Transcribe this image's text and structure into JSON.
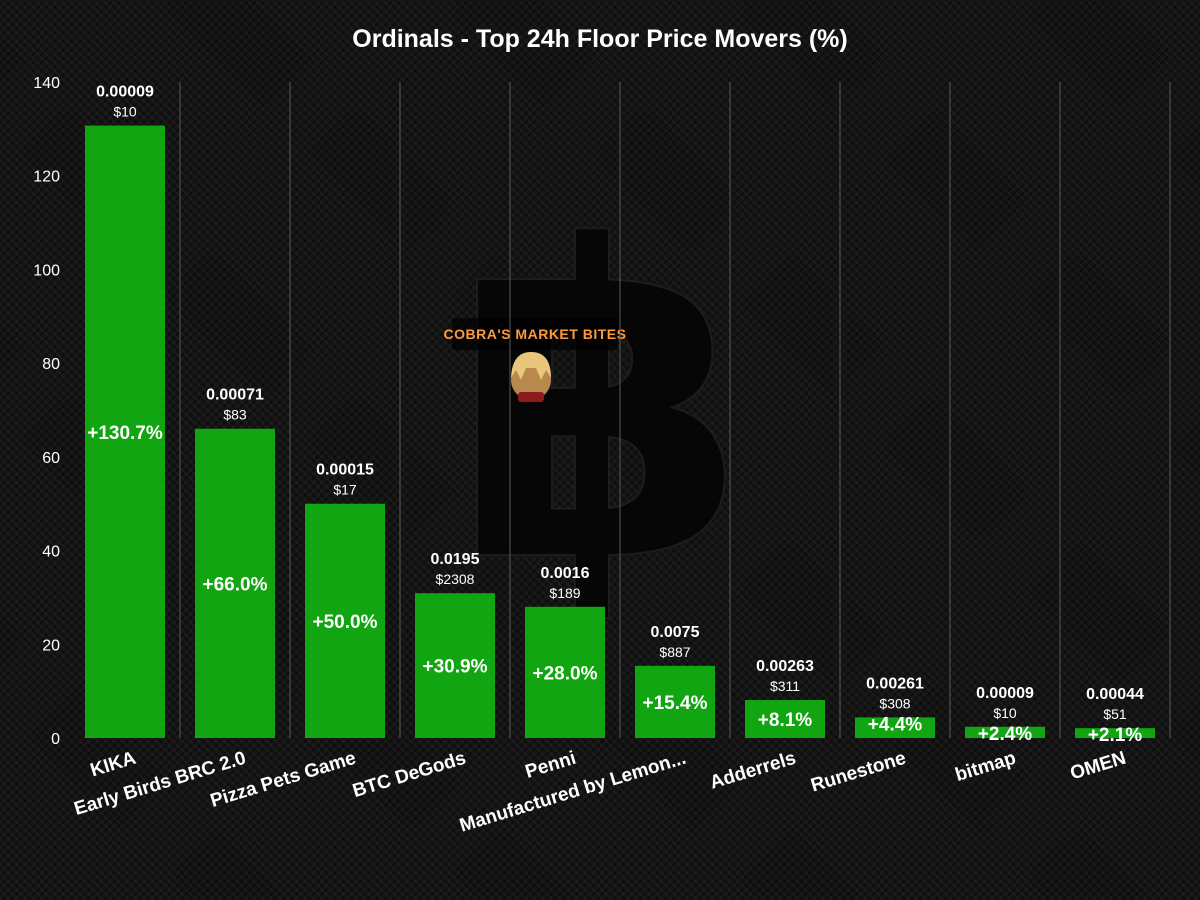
{
  "chart_data": {
    "type": "bar",
    "title": "Ordinals - Top 24h Floor Price Movers (%)",
    "xlabel": "",
    "ylabel": "",
    "ylim": [
      0,
      140
    ],
    "yticks": [
      0,
      20,
      40,
      60,
      80,
      100,
      120,
      140
    ],
    "grid": "vertical",
    "categories": [
      "KIKA",
      "Early Birds BRC 2.0",
      "Pizza Pets Game",
      "BTC DeGods",
      "Penni",
      "Manufactured by Lemon...",
      "Adderrels",
      "Runestone",
      "bitmap",
      "OMEN"
    ],
    "values": [
      130.7,
      66.0,
      50.0,
      30.9,
      28.0,
      15.4,
      8.1,
      4.4,
      2.4,
      2.1
    ],
    "value_labels": [
      "+130.7%",
      "+66.0%",
      "+50.0%",
      "+30.9%",
      "+28.0%",
      "+15.4%",
      "+8.1%",
      "+4.4%",
      "+2.4%",
      "+2.1%"
    ],
    "floor_btc": [
      "0.00009",
      "0.00071",
      "0.00015",
      "0.0195",
      "0.0016",
      "0.0075",
      "0.00263",
      "0.00261",
      "0.00009",
      "0.00044"
    ],
    "floor_usd": [
      "$10",
      "$83",
      "$17",
      "$2308",
      "$189",
      "$887",
      "$311",
      "$308",
      "$10",
      "$51"
    ],
    "bar_color": "#11a511"
  },
  "watermark": {
    "brand_text": "COBRA'S MARKET BITES",
    "symbol": "bitcoin-logo"
  }
}
